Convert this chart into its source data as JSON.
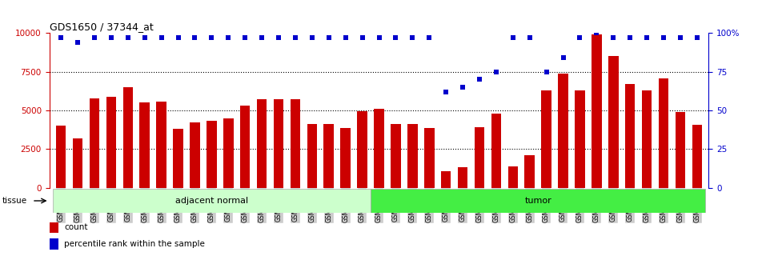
{
  "title": "GDS1650 / 37344_at",
  "bar_color": "#cc0000",
  "dot_color": "#0000cc",
  "left_ylim": [
    0,
    10000
  ],
  "right_ylim": [
    0,
    100
  ],
  "left_yticks": [
    0,
    2500,
    5000,
    7500,
    10000
  ],
  "right_yticks": [
    0,
    25,
    50,
    75,
    100
  ],
  "right_yticklabels": [
    "0",
    "25",
    "50",
    "75",
    "100%"
  ],
  "samples": [
    "GSM47958",
    "GSM47959",
    "GSM47960",
    "GSM47961",
    "GSM47962",
    "GSM47963",
    "GSM47964",
    "GSM47965",
    "GSM47966",
    "GSM47967",
    "GSM47968",
    "GSM47969",
    "GSM47970",
    "GSM47971",
    "GSM47972",
    "GSM47973",
    "GSM47974",
    "GSM47975",
    "GSM47976",
    "GSM36757",
    "GSM36758",
    "GSM36759",
    "GSM36760",
    "GSM36761",
    "GSM36762",
    "GSM36763",
    "GSM36764",
    "GSM36765",
    "GSM36766",
    "GSM36767",
    "GSM36768",
    "GSM36769",
    "GSM36770",
    "GSM36771",
    "GSM36772",
    "GSM36773",
    "GSM36774",
    "GSM36775",
    "GSM36776"
  ],
  "bar_values": [
    4000,
    3200,
    5800,
    5900,
    6500,
    5500,
    5550,
    3800,
    4200,
    4350,
    4500,
    5300,
    5750,
    5750,
    5700,
    4100,
    4100,
    3850,
    4950,
    5100,
    4100,
    4100,
    3850,
    1050,
    1300,
    3900,
    4800,
    1400,
    2100,
    6300,
    7400,
    6300,
    9900,
    8500,
    6700,
    6300,
    7050,
    4900,
    4050
  ],
  "dot_values_pct": [
    97,
    94,
    97,
    97,
    97,
    97,
    97,
    97,
    97,
    97,
    97,
    97,
    97,
    97,
    97,
    97,
    97,
    97,
    97,
    97,
    97,
    97,
    97,
    62,
    65,
    70,
    75,
    97,
    97,
    75,
    84,
    97,
    100,
    97,
    97,
    97,
    97,
    97,
    97
  ],
  "group1_label": "adjacent normal",
  "group2_label": "tumor",
  "group1_count": 19,
  "group2_count": 20,
  "tissue_label": "tissue",
  "legend_bar_label": "count",
  "legend_dot_label": "percentile rank within the sample",
  "bg_color_group1": "#ccffcc",
  "bg_color_group2": "#44ee44",
  "tick_bg_color": "#cccccc",
  "figsize": [
    9.47,
    3.45
  ],
  "dpi": 100
}
